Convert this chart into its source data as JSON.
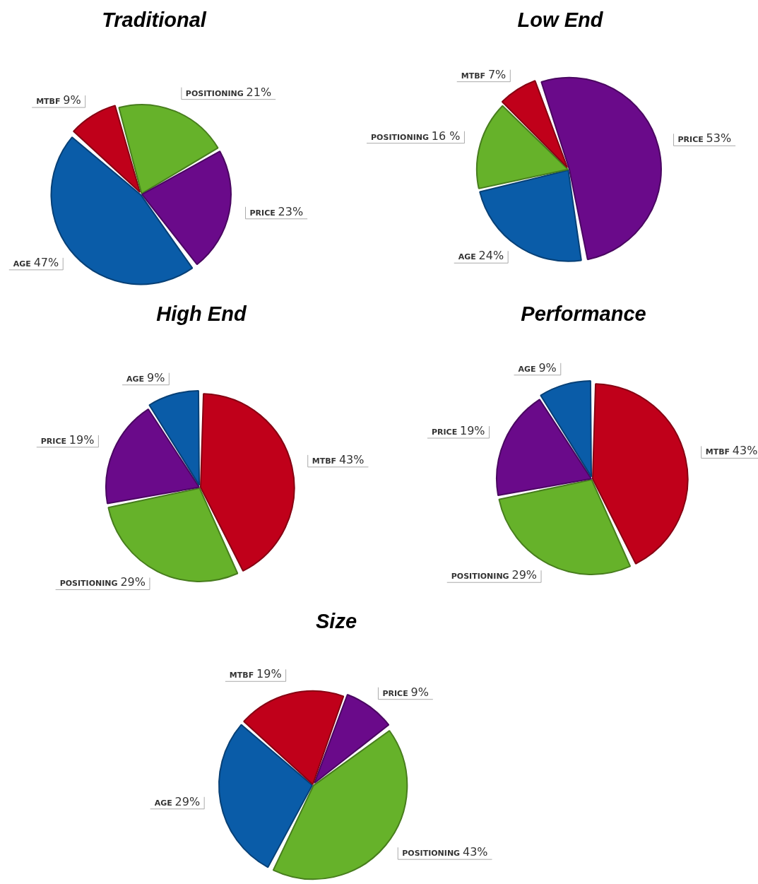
{
  "chart_data": [
    {
      "type": "pie",
      "title": "Traditional",
      "categories": [
        "MTBF",
        "POSITIONING",
        "PRICE",
        "AGE"
      ],
      "values": [
        9,
        21,
        23,
        47
      ],
      "value_labels": [
        "9%",
        "21%",
        "23%",
        "47%"
      ],
      "colors": [
        "#c0001a",
        "#66b22a",
        "#6a0a8a",
        "#0a5ca8"
      ],
      "legend": false
    },
    {
      "type": "pie",
      "title": "Low End",
      "categories": [
        "PRICE",
        "AGE",
        "POSITIONING",
        "MTBF"
      ],
      "values": [
        53,
        24,
        16,
        7
      ],
      "value_labels": [
        "53%",
        "24%",
        "16 %",
        "7%"
      ],
      "colors": [
        "#6a0a8a",
        "#0a5ca8",
        "#66b22a",
        "#c0001a"
      ],
      "legend": false
    },
    {
      "type": "pie",
      "title": "High End",
      "categories": [
        "MTBF",
        "POSITIONING",
        "PRICE",
        "AGE"
      ],
      "values": [
        43,
        29,
        19,
        9
      ],
      "value_labels": [
        "43%",
        "29%",
        "19%",
        "9%"
      ],
      "colors": [
        "#c0001a",
        "#66b22a",
        "#6a0a8a",
        "#0a5ca8"
      ],
      "legend": false
    },
    {
      "type": "pie",
      "title": "Performance",
      "categories": [
        "MTBF",
        "POSITIONING",
        "PRICE",
        "AGE"
      ],
      "values": [
        43,
        29,
        19,
        9
      ],
      "value_labels": [
        "43%",
        "29%",
        "19%",
        "9%"
      ],
      "colors": [
        "#c0001a",
        "#66b22a",
        "#6a0a8a",
        "#0a5ca8"
      ],
      "legend": false
    },
    {
      "type": "pie",
      "title": "Size",
      "categories": [
        "PRICE",
        "POSITIONING",
        "AGE",
        "MTBF"
      ],
      "values": [
        9,
        43,
        29,
        19
      ],
      "value_labels": [
        "9%",
        "43%",
        "29%",
        "19%"
      ],
      "colors": [
        "#6a0a8a",
        "#66b22a",
        "#0a5ca8",
        "#c0001a"
      ],
      "legend": false
    }
  ]
}
